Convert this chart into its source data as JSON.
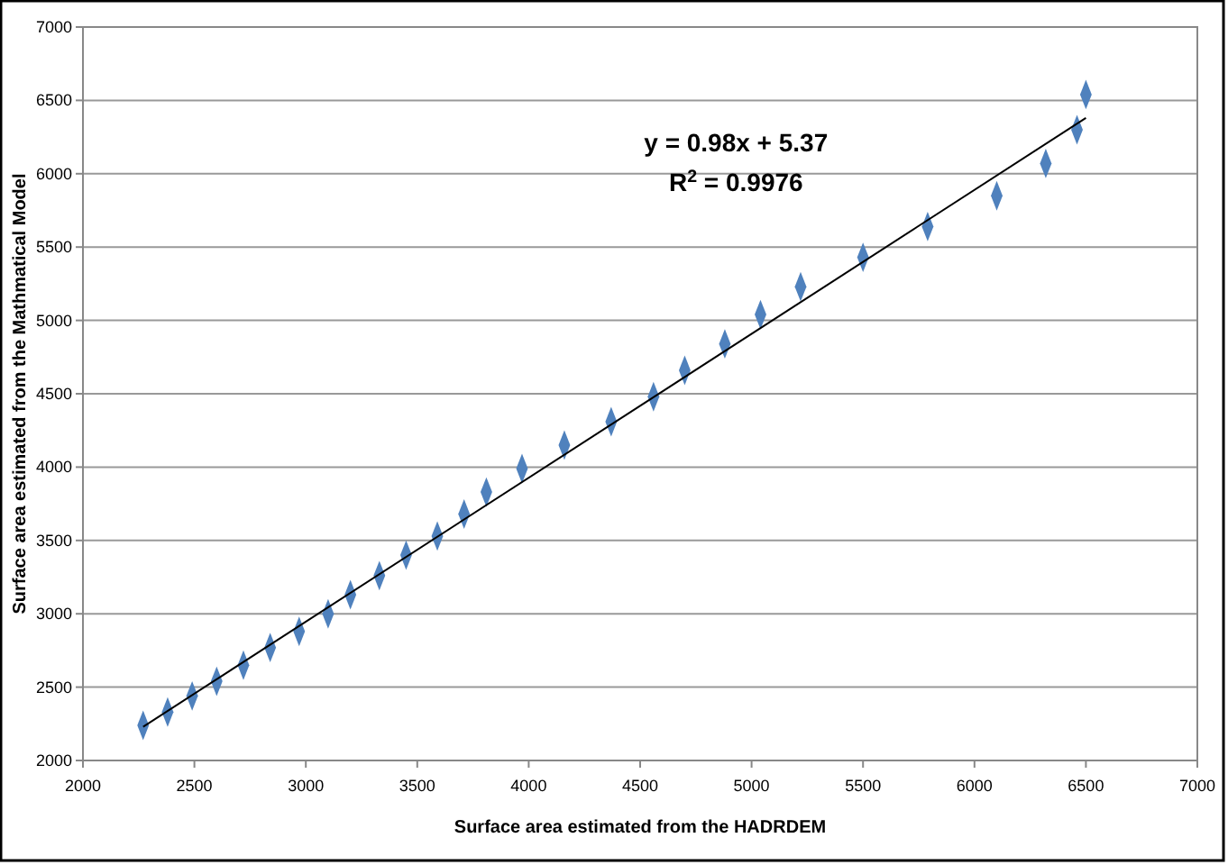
{
  "chart_data": {
    "type": "scatter",
    "xlabel": "Surface area estimated from the HADRDEM",
    "ylabel": "Surface area estimated from the Mathmatical Model",
    "xlim": [
      2000,
      7000
    ],
    "xticks": [
      2000,
      2500,
      3000,
      3500,
      4000,
      4500,
      5000,
      5500,
      6000,
      6500,
      7000
    ],
    "ylim": [
      2000,
      7000
    ],
    "yticks": [
      2000,
      2500,
      3000,
      3500,
      4000,
      4500,
      5000,
      5500,
      6000,
      6500,
      7000
    ],
    "grid": "y",
    "annotations": [
      "y = 0.98x + 5.37",
      "R$^{2}$ = 0.9976"
    ],
    "series": [
      {
        "marker": "diamond",
        "color": "#4f81bd",
        "x": [
          2270,
          2380,
          2490,
          2600,
          2720,
          2840,
          2970,
          3100,
          3200,
          3330,
          3450,
          3590,
          3710,
          3810,
          3970,
          4160,
          4370,
          4560,
          4700,
          4880,
          5040,
          5220,
          5500,
          5790,
          6100,
          6320,
          6460,
          6500
        ],
        "values": [
          2240,
          2330,
          2440,
          2540,
          2650,
          2770,
          2880,
          3000,
          3130,
          3260,
          3400,
          3530,
          3680,
          3830,
          3990,
          4150,
          4310,
          4480,
          4660,
          4840,
          5040,
          5230,
          5430,
          5640,
          5850,
          6070,
          6300,
          6540
        ]
      },
      {
        "type": "line",
        "color": "#000000",
        "x": [
          2270,
          6500
        ],
        "values": [
          2230,
          6380
        ]
      }
    ]
  }
}
